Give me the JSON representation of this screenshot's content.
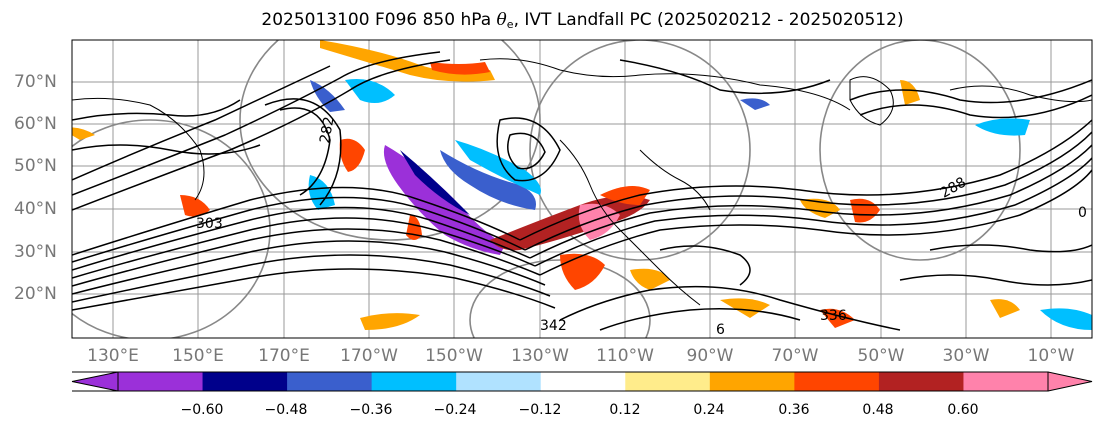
{
  "title": {
    "prefix": "2025013100 F096 850 hPa ",
    "symbol": "θ",
    "subscript": "e",
    "suffix": ", IVT Landfall PC (2025020212 - 2025020512)"
  },
  "map": {
    "latitude_labels": [
      "70°N",
      "60°N",
      "50°N",
      "40°N",
      "30°N",
      "20°N"
    ],
    "longitude_labels": [
      "130°E",
      "150°E",
      "170°E",
      "170°W",
      "150°W",
      "130°W",
      "110°W",
      "90°W",
      "70°W",
      "50°W",
      "30°W",
      "10°W"
    ],
    "contour_labels": [
      "282",
      "288",
      "303",
      "342",
      "336",
      "6",
      "0"
    ]
  },
  "colorbar": {
    "colors": [
      "#9b30d9",
      "#00008b",
      "#3a5fcd",
      "#00bfff",
      "#b0e2ff",
      "#ffffff",
      "#ffec8b",
      "#ffa500",
      "#ff4500",
      "#b22222",
      "#ff82ab"
    ],
    "tick_labels": [
      "−0.60",
      "−0.48",
      "−0.36",
      "−0.24",
      "−0.12",
      "0.12",
      "0.24",
      "0.36",
      "0.48",
      "0.60"
    ]
  }
}
